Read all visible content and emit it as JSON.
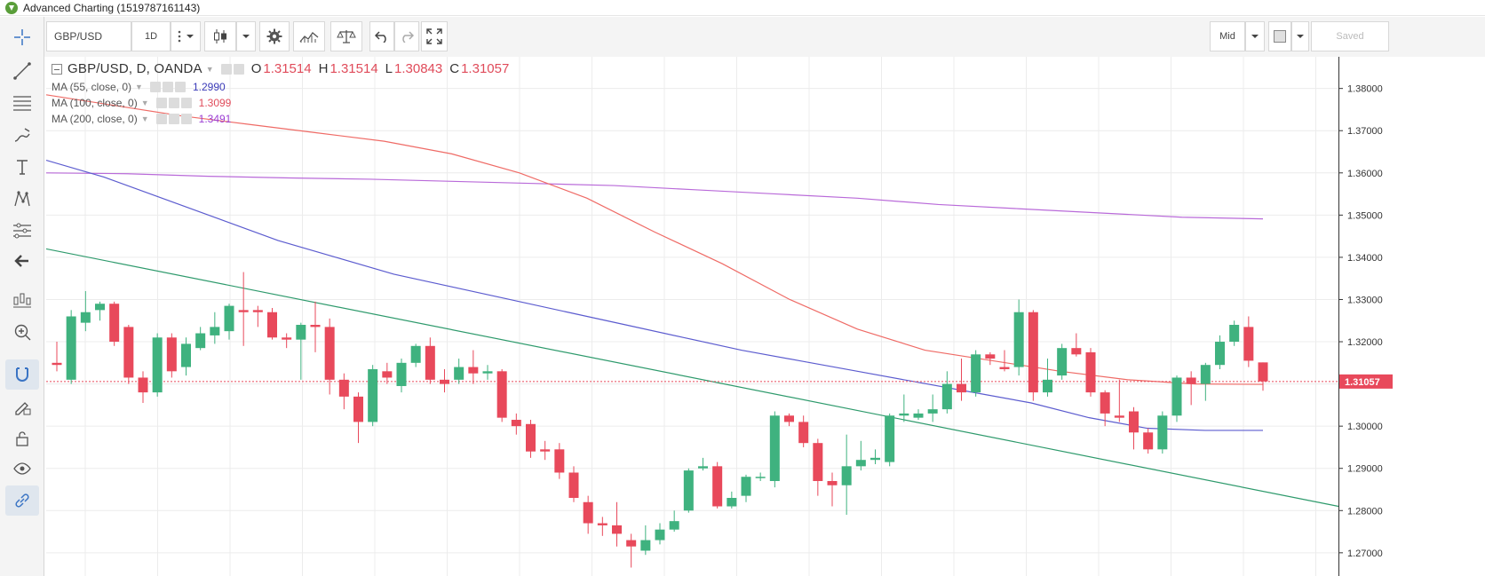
{
  "window": {
    "title": "Advanced Charting (1519787161143)"
  },
  "toolbar": {
    "symbol": "GBP/USD",
    "interval": "1D",
    "price_source": "Mid",
    "save_label": "Saved"
  },
  "left_tools": [
    {
      "name": "crosshair-icon"
    },
    {
      "name": "trend-line-icon"
    },
    {
      "name": "fib-retracement-icon"
    },
    {
      "name": "brush-icon"
    },
    {
      "name": "text-icon"
    },
    {
      "name": "pattern-icon"
    },
    {
      "name": "measure-icon"
    },
    {
      "name": "back-arrow-icon"
    },
    {
      "name": "tools-icon"
    },
    {
      "name": "zoom-in-icon"
    },
    {
      "name": "magnet-icon"
    },
    {
      "name": "lock-edit-icon"
    },
    {
      "name": "lock-icon"
    },
    {
      "name": "eye-icon"
    },
    {
      "name": "link-icon"
    }
  ],
  "legend": {
    "title": "GBP/USD, D, OANDA",
    "o_label": "O",
    "o_value": "1.31514",
    "h_label": "H",
    "h_value": "1.31514",
    "l_label": "L",
    "l_value": "1.30843",
    "c_label": "C",
    "c_value": "1.31057",
    "studies": [
      {
        "label": "MA (55, close, 0)",
        "value": "1.2990",
        "color": "#3a3ab8"
      },
      {
        "label": "MA (100, close, 0)",
        "value": "1.3099",
        "color": "#e04b5a"
      },
      {
        "label": "MA (200, close, 0)",
        "value": "1.3491",
        "color": "#9c3fd4"
      }
    ]
  },
  "colors": {
    "up": "#3fb27f",
    "down": "#e8495b",
    "ma55": "#5c5ccf",
    "ma100": "#ef6b66",
    "ma200": "#b96ad9",
    "trendline": "#2e9a6c",
    "grid": "#ececec",
    "last_price_bg": "#e8495b"
  },
  "chart_data": {
    "type": "candlestick",
    "ylim": [
      1.2645,
      1.3875
    ],
    "y_ticks": [
      "1.38000",
      "1.37000",
      "1.36000",
      "1.35000",
      "1.34000",
      "1.33000",
      "1.32000",
      "1.31000",
      "1.30000",
      "1.29000",
      "1.28000",
      "1.27000"
    ],
    "last_price": "1.31057",
    "candles": [
      {
        "o": 1.315,
        "h": 1.32,
        "l": 1.313,
        "c": 1.3145
      },
      {
        "o": 1.311,
        "h": 1.3275,
        "l": 1.31,
        "c": 1.326
      },
      {
        "o": 1.3245,
        "h": 1.332,
        "l": 1.3225,
        "c": 1.327
      },
      {
        "o": 1.3275,
        "h": 1.3295,
        "l": 1.325,
        "c": 1.329
      },
      {
        "o": 1.329,
        "h": 1.3295,
        "l": 1.319,
        "c": 1.32
      },
      {
        "o": 1.3235,
        "h": 1.324,
        "l": 1.31,
        "c": 1.3115
      },
      {
        "o": 1.3115,
        "h": 1.313,
        "l": 1.3055,
        "c": 1.308
      },
      {
        "o": 1.308,
        "h": 1.322,
        "l": 1.307,
        "c": 1.321
      },
      {
        "o": 1.321,
        "h": 1.322,
        "l": 1.3115,
        "c": 1.313
      },
      {
        "o": 1.314,
        "h": 1.321,
        "l": 1.312,
        "c": 1.3195
      },
      {
        "o": 1.3185,
        "h": 1.3235,
        "l": 1.318,
        "c": 1.322
      },
      {
        "o": 1.3215,
        "h": 1.327,
        "l": 1.3195,
        "c": 1.3235
      },
      {
        "o": 1.3225,
        "h": 1.329,
        "l": 1.3205,
        "c": 1.3285
      },
      {
        "o": 1.3275,
        "h": 1.3365,
        "l": 1.319,
        "c": 1.327
      },
      {
        "o": 1.3275,
        "h": 1.3285,
        "l": 1.3235,
        "c": 1.327
      },
      {
        "o": 1.327,
        "h": 1.328,
        "l": 1.3205,
        "c": 1.321
      },
      {
        "o": 1.321,
        "h": 1.322,
        "l": 1.3185,
        "c": 1.3205
      },
      {
        "o": 1.3205,
        "h": 1.3245,
        "l": 1.311,
        "c": 1.324
      },
      {
        "o": 1.324,
        "h": 1.3295,
        "l": 1.3175,
        "c": 1.3235
      },
      {
        "o": 1.3235,
        "h": 1.3255,
        "l": 1.3075,
        "c": 1.311
      },
      {
        "o": 1.311,
        "h": 1.3125,
        "l": 1.304,
        "c": 1.307
      },
      {
        "o": 1.307,
        "h": 1.308,
        "l": 1.296,
        "c": 1.301
      },
      {
        "o": 1.301,
        "h": 1.3145,
        "l": 1.3,
        "c": 1.3135
      },
      {
        "o": 1.313,
        "h": 1.315,
        "l": 1.31,
        "c": 1.3115
      },
      {
        "o": 1.3095,
        "h": 1.316,
        "l": 1.308,
        "c": 1.315
      },
      {
        "o": 1.315,
        "h": 1.3195,
        "l": 1.314,
        "c": 1.319
      },
      {
        "o": 1.319,
        "h": 1.321,
        "l": 1.31,
        "c": 1.311
      },
      {
        "o": 1.311,
        "h": 1.3135,
        "l": 1.308,
        "c": 1.31
      },
      {
        "o": 1.311,
        "h": 1.316,
        "l": 1.31,
        "c": 1.314
      },
      {
        "o": 1.314,
        "h": 1.318,
        "l": 1.31,
        "c": 1.3125
      },
      {
        "o": 1.3125,
        "h": 1.3145,
        "l": 1.311,
        "c": 1.313
      },
      {
        "o": 1.313,
        "h": 1.3135,
        "l": 1.301,
        "c": 1.302
      },
      {
        "o": 1.3015,
        "h": 1.303,
        "l": 1.298,
        "c": 1.3
      },
      {
        "o": 1.3005,
        "h": 1.3015,
        "l": 1.2925,
        "c": 1.294
      },
      {
        "o": 1.2945,
        "h": 1.2965,
        "l": 1.292,
        "c": 1.294
      },
      {
        "o": 1.2945,
        "h": 1.296,
        "l": 1.2875,
        "c": 1.289
      },
      {
        "o": 1.289,
        "h": 1.2905,
        "l": 1.282,
        "c": 1.283
      },
      {
        "o": 1.282,
        "h": 1.2835,
        "l": 1.2745,
        "c": 1.277
      },
      {
        "o": 1.277,
        "h": 1.2785,
        "l": 1.274,
        "c": 1.2765
      },
      {
        "o": 1.2765,
        "h": 1.282,
        "l": 1.2715,
        "c": 1.2745
      },
      {
        "o": 1.273,
        "h": 1.2745,
        "l": 1.2665,
        "c": 1.2715
      },
      {
        "o": 1.2705,
        "h": 1.2765,
        "l": 1.2695,
        "c": 1.273
      },
      {
        "o": 1.273,
        "h": 1.277,
        "l": 1.272,
        "c": 1.2755
      },
      {
        "o": 1.2755,
        "h": 1.28,
        "l": 1.275,
        "c": 1.2775
      },
      {
        "o": 1.28,
        "h": 1.29,
        "l": 1.2795,
        "c": 1.2895
      },
      {
        "o": 1.29,
        "h": 1.2925,
        "l": 1.2895,
        "c": 1.2905
      },
      {
        "o": 1.2905,
        "h": 1.2915,
        "l": 1.2805,
        "c": 1.281
      },
      {
        "o": 1.281,
        "h": 1.2845,
        "l": 1.2805,
        "c": 1.283
      },
      {
        "o": 1.2835,
        "h": 1.2885,
        "l": 1.282,
        "c": 1.288
      },
      {
        "o": 1.288,
        "h": 1.289,
        "l": 1.287,
        "c": 1.288
      },
      {
        "o": 1.287,
        "h": 1.3035,
        "l": 1.2855,
        "c": 1.3025
      },
      {
        "o": 1.3025,
        "h": 1.303,
        "l": 1.3,
        "c": 1.301
      },
      {
        "o": 1.301,
        "h": 1.3025,
        "l": 1.295,
        "c": 1.296
      },
      {
        "o": 1.296,
        "h": 1.297,
        "l": 1.2835,
        "c": 1.287
      },
      {
        "o": 1.287,
        "h": 1.289,
        "l": 1.281,
        "c": 1.286
      },
      {
        "o": 1.286,
        "h": 1.298,
        "l": 1.279,
        "c": 1.2905
      },
      {
        "o": 1.2905,
        "h": 1.2965,
        "l": 1.2895,
        "c": 1.292
      },
      {
        "o": 1.292,
        "h": 1.2945,
        "l": 1.291,
        "c": 1.2925
      },
      {
        "o": 1.2915,
        "h": 1.303,
        "l": 1.2905,
        "c": 1.3025
      },
      {
        "o": 1.3025,
        "h": 1.3075,
        "l": 1.301,
        "c": 1.303
      },
      {
        "o": 1.302,
        "h": 1.304,
        "l": 1.3015,
        "c": 1.303
      },
      {
        "o": 1.303,
        "h": 1.3075,
        "l": 1.301,
        "c": 1.304
      },
      {
        "o": 1.304,
        "h": 1.313,
        "l": 1.303,
        "c": 1.31
      },
      {
        "o": 1.31,
        "h": 1.316,
        "l": 1.306,
        "c": 1.308
      },
      {
        "o": 1.308,
        "h": 1.318,
        "l": 1.307,
        "c": 1.317
      },
      {
        "o": 1.317,
        "h": 1.3175,
        "l": 1.3145,
        "c": 1.316
      },
      {
        "o": 1.314,
        "h": 1.318,
        "l": 1.313,
        "c": 1.3135
      },
      {
        "o": 1.314,
        "h": 1.33,
        "l": 1.312,
        "c": 1.327
      },
      {
        "o": 1.327,
        "h": 1.3275,
        "l": 1.306,
        "c": 1.308
      },
      {
        "o": 1.308,
        "h": 1.316,
        "l": 1.307,
        "c": 1.311
      },
      {
        "o": 1.312,
        "h": 1.3195,
        "l": 1.311,
        "c": 1.3185
      },
      {
        "o": 1.3185,
        "h": 1.322,
        "l": 1.3165,
        "c": 1.317
      },
      {
        "o": 1.3175,
        "h": 1.3185,
        "l": 1.307,
        "c": 1.308
      },
      {
        "o": 1.308,
        "h": 1.3085,
        "l": 1.3,
        "c": 1.303
      },
      {
        "o": 1.3025,
        "h": 1.311,
        "l": 1.301,
        "c": 1.302
      },
      {
        "o": 1.3035,
        "h": 1.3045,
        "l": 1.2945,
        "c": 1.2985
      },
      {
        "o": 1.2985,
        "h": 1.2995,
        "l": 1.2935,
        "c": 1.2945
      },
      {
        "o": 1.2945,
        "h": 1.3035,
        "l": 1.2935,
        "c": 1.3025
      },
      {
        "o": 1.3025,
        "h": 1.312,
        "l": 1.301,
        "c": 1.3115
      },
      {
        "o": 1.3115,
        "h": 1.313,
        "l": 1.305,
        "c": 1.31
      },
      {
        "o": 1.31,
        "h": 1.315,
        "l": 1.306,
        "c": 1.3145
      },
      {
        "o": 1.3145,
        "h": 1.3215,
        "l": 1.3135,
        "c": 1.32
      },
      {
        "o": 1.32,
        "h": 1.325,
        "l": 1.319,
        "c": 1.324
      },
      {
        "o": 1.3235,
        "h": 1.326,
        "l": 1.314,
        "c": 1.3155
      },
      {
        "o": 1.3151,
        "h": 1.3151,
        "l": 1.3084,
        "c": 1.3106
      }
    ],
    "ma55": [
      1.363,
      1.359,
      1.354,
      1.349,
      1.344,
      1.34,
      1.336,
      1.333,
      1.33,
      1.327,
      1.324,
      1.321,
      1.318,
      1.3155,
      1.313,
      1.3105,
      1.308,
      1.3055,
      1.302,
      1.2995,
      1.299,
      1.299
    ],
    "ma100": [
      1.3785,
      1.376,
      1.3735,
      1.3715,
      1.3695,
      1.3675,
      1.3645,
      1.36,
      1.354,
      1.346,
      1.3385,
      1.33,
      1.323,
      1.318,
      1.3155,
      1.313,
      1.311,
      1.31,
      1.3099
    ],
    "ma200": [
      1.36,
      1.3598,
      1.3592,
      1.3588,
      1.3585,
      1.358,
      1.3575,
      1.357,
      1.356,
      1.355,
      1.354,
      1.3525,
      1.3515,
      1.3505,
      1.3495,
      1.3491
    ],
    "trendline": [
      1.342,
      1.281
    ]
  }
}
